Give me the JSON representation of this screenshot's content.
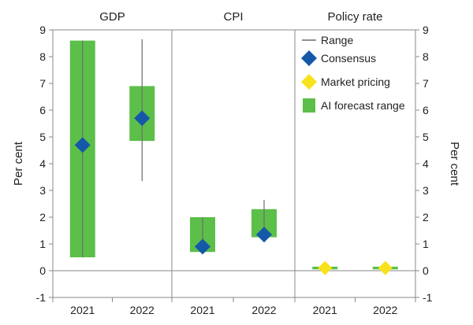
{
  "chart_data": {
    "type": "bar",
    "ylabel_left": "Per cent",
    "ylabel_right": "Per cent",
    "ylim": [
      -1,
      9
    ],
    "y_ticks": [
      "-1",
      "0",
      "1",
      "2",
      "3",
      "4",
      "5",
      "6",
      "7",
      "8",
      "9"
    ],
    "grid": false,
    "legend_position": "top-right",
    "panels": [
      {
        "title": "GDP",
        "categories": [
          "2021",
          "2022"
        ],
        "ai_forecast_range": [
          [
            0.5,
            8.6
          ],
          [
            4.85,
            6.9
          ]
        ],
        "range": [
          [
            0.5,
            8.6
          ],
          [
            3.35,
            8.65
          ]
        ],
        "consensus": [
          4.7,
          5.7
        ],
        "market_pricing": [
          null,
          null
        ]
      },
      {
        "title": "CPI",
        "categories": [
          "2021",
          "2022"
        ],
        "ai_forecast_range": [
          [
            0.7,
            2.0
          ],
          [
            1.25,
            2.3
          ]
        ],
        "range": [
          [
            0.7,
            2.0
          ],
          [
            1.3,
            2.65
          ]
        ],
        "consensus": [
          0.9,
          1.35
        ],
        "market_pricing": [
          null,
          null
        ]
      },
      {
        "title": "Policy rate",
        "categories": [
          "2021",
          "2022"
        ],
        "ai_forecast_range": [
          [
            0.05,
            0.15
          ],
          [
            0.05,
            0.15
          ]
        ],
        "range": [
          null,
          null
        ],
        "consensus": [
          null,
          null
        ],
        "market_pricing": [
          0.1,
          0.1
        ]
      }
    ],
    "legend": [
      {
        "key": "range",
        "label": "Range"
      },
      {
        "key": "consensus",
        "label": "Consensus"
      },
      {
        "key": "market_pricing",
        "label": "Market pricing"
      },
      {
        "key": "ai_forecast_range",
        "label": "AI forecast range"
      }
    ],
    "colors": {
      "ai_forecast_range": "#5cbf4a",
      "range": "#6d6d6d",
      "consensus": "#1458a8",
      "market_pricing": "#f7e21c",
      "axis": "#888888",
      "text": "#222222"
    }
  }
}
